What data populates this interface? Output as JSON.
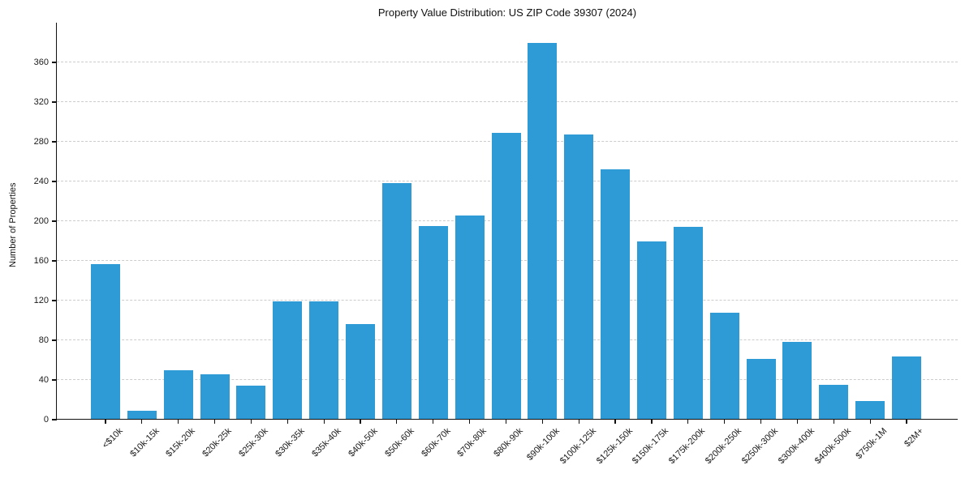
{
  "chart_data": {
    "type": "bar",
    "title": "Property Value Distribution: US ZIP Code 39307 (2024)",
    "xlabel": "",
    "ylabel": "Number of Properties",
    "categories": [
      "<$10k",
      "$10k-15k",
      "$15k-20k",
      "$20k-25k",
      "$25k-30k",
      "$30k-35k",
      "$35k-40k",
      "$40k-50k",
      "$50k-60k",
      "$60k-70k",
      "$70k-80k",
      "$80k-90k",
      "$90k-100k",
      "$100k-125k",
      "$125k-150k",
      "$150k-175k",
      "$175k-200k",
      "$200k-250k",
      "$250k-300k",
      "$300k-400k",
      "$400k-500k",
      "$750k-1M",
      "$2M+"
    ],
    "values": [
      157,
      9,
      50,
      46,
      34,
      119,
      119,
      96,
      238,
      195,
      206,
      289,
      380,
      287,
      252,
      180,
      194,
      108,
      61,
      78,
      35,
      19,
      64
    ],
    "yticks": [
      0,
      40,
      80,
      120,
      160,
      200,
      240,
      280,
      320,
      360
    ],
    "ylim": [
      0,
      400
    ],
    "grid": true,
    "grid_style": "dashed",
    "legend_position": "none",
    "colors": {
      "bar": "#2e9ad6",
      "grid": "#cccccc",
      "axis": "#111111",
      "text": "#1a1a1a",
      "background": "#ffffff"
    }
  }
}
